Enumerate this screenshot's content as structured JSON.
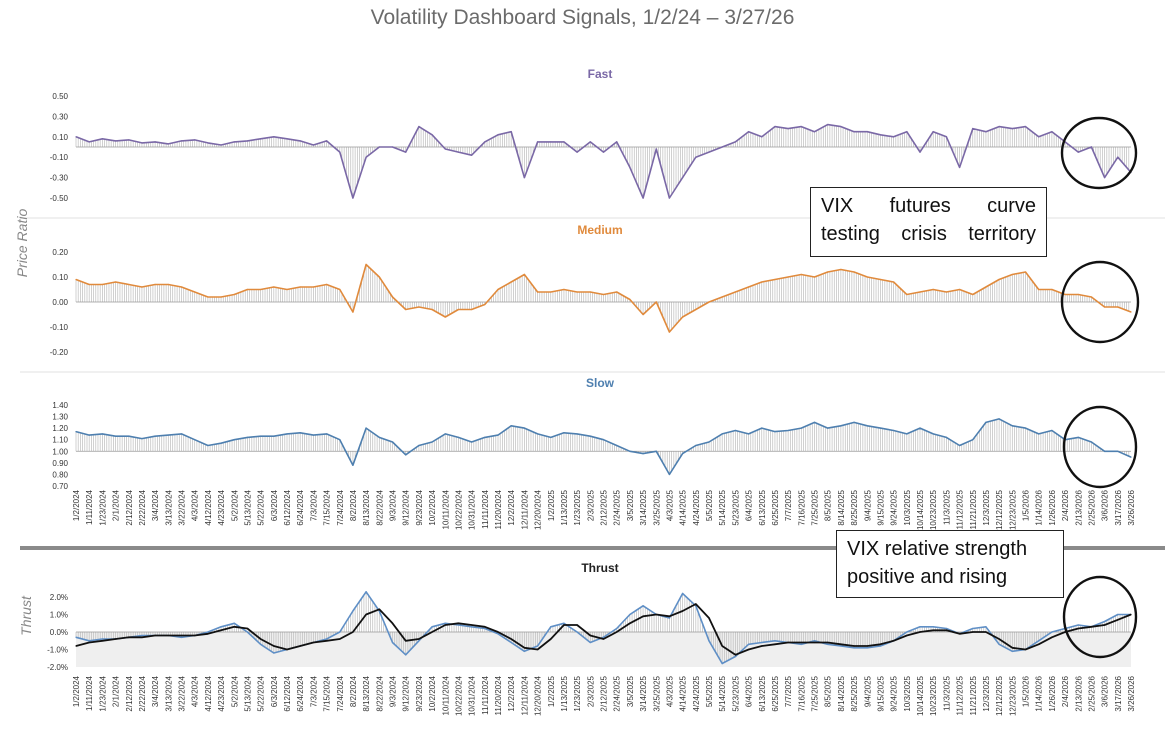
{
  "title": "Volatility Dashboard Signals, 1/2/24 – 3/27/26",
  "y_axis_label_top": "Price Ratio",
  "y_axis_label_bottom": "Thrust",
  "callouts": [
    "VIX futures curve testing crisis territory",
    "VIX relative strength positive and rising"
  ],
  "colors": {
    "fast": "#7a68a6",
    "medium": "#e08a3c",
    "slow": "#4e7faf",
    "thrust_blue": "#5f8fc6",
    "thrust_black": "#111111",
    "bars": "#bdbdbd",
    "divider": "#8a8a8a"
  },
  "date_labels": [
    "1/2/2024",
    "1/11/2024",
    "1/23/2024",
    "2/1/2024",
    "2/12/2024",
    "2/22/2024",
    "3/4/2024",
    "3/13/2024",
    "3/22/2024",
    "4/3/2024",
    "4/12/2024",
    "4/23/2024",
    "5/2/2024",
    "5/13/2024",
    "5/22/2024",
    "6/3/2024",
    "6/12/2024",
    "6/24/2024",
    "7/3/2024",
    "7/15/2024",
    "7/24/2024",
    "8/2/2024",
    "8/13/2024",
    "8/22/2024",
    "9/3/2024",
    "9/12/2024",
    "9/23/2024",
    "10/2/2024",
    "10/11/2024",
    "10/22/2024",
    "10/31/2024",
    "11/11/2024",
    "11/20/2024",
    "12/2/2024",
    "12/11/2024",
    "12/20/2024",
    "1/2/2025",
    "1/13/2025",
    "1/23/2025",
    "2/3/2025",
    "2/12/2025",
    "2/24/2025",
    "3/5/2025",
    "3/14/2025",
    "3/25/2025",
    "4/3/2025",
    "4/14/2025",
    "4/24/2025",
    "5/5/2025",
    "5/14/2025",
    "5/23/2025",
    "6/4/2025",
    "6/13/2025",
    "6/25/2025",
    "7/7/2025",
    "7/16/2025",
    "7/25/2025",
    "8/5/2025",
    "8/14/2025",
    "8/25/2025",
    "9/4/2025",
    "9/15/2025",
    "9/24/2025",
    "10/3/2025",
    "10/14/2025",
    "10/23/2025",
    "11/3/2025",
    "11/12/2025",
    "11/21/2025",
    "12/3/2025",
    "12/12/2025",
    "12/23/2025",
    "1/5/2026",
    "1/14/2026",
    "1/26/2026",
    "2/4/2026",
    "2/13/2026",
    "2/25/2026",
    "3/6/2026",
    "3/17/2026",
    "3/26/2026"
  ],
  "chart_data": [
    {
      "type": "line",
      "title": "Fast",
      "series": [
        {
          "values": [
            0.1,
            0.05,
            0.08,
            0.06,
            0.07,
            0.04,
            0.05,
            0.03,
            0.06,
            0.07,
            0.04,
            0.02,
            0.05,
            0.06,
            0.08,
            0.1,
            0.08,
            0.06,
            0.02,
            0.06,
            -0.05,
            -0.5,
            -0.1,
            0.0,
            0.0,
            -0.05,
            0.2,
            0.12,
            -0.02,
            -0.05,
            -0.08,
            0.05,
            0.12,
            0.15,
            -0.3,
            0.05,
            0.05,
            0.05,
            -0.05,
            0.05,
            -0.05,
            0.05,
            -0.2,
            -0.5,
            -0.02,
            -0.5,
            -0.3,
            -0.1,
            -0.05,
            0.0,
            0.05,
            0.15,
            0.1,
            0.2,
            0.18,
            0.2,
            0.15,
            0.22,
            0.2,
            0.15,
            0.15,
            0.12,
            0.1,
            0.15,
            -0.05,
            0.15,
            0.1,
            -0.2,
            0.18,
            0.15,
            0.2,
            0.18,
            0.2,
            0.1,
            0.15,
            0.05,
            -0.05,
            0.0,
            -0.3,
            -0.1,
            -0.25
          ]
        }
      ],
      "ylim": [
        -0.5,
        0.5
      ],
      "yticks": [
        "0.50",
        "0.30",
        "0.10",
        "-0.10",
        "-0.30",
        "-0.50"
      ]
    },
    {
      "type": "line",
      "title": "Medium",
      "series": [
        {
          "values": [
            0.09,
            0.07,
            0.07,
            0.08,
            0.07,
            0.06,
            0.07,
            0.07,
            0.06,
            0.04,
            0.02,
            0.02,
            0.03,
            0.05,
            0.05,
            0.06,
            0.05,
            0.06,
            0.06,
            0.07,
            0.05,
            -0.04,
            0.15,
            0.1,
            0.02,
            -0.03,
            -0.02,
            -0.03,
            -0.06,
            -0.03,
            -0.03,
            -0.01,
            0.05,
            0.08,
            0.11,
            0.04,
            0.04,
            0.05,
            0.04,
            0.04,
            0.03,
            0.04,
            0.01,
            -0.05,
            0.0,
            -0.12,
            -0.06,
            -0.03,
            0.0,
            0.02,
            0.04,
            0.06,
            0.08,
            0.09,
            0.1,
            0.11,
            0.1,
            0.12,
            0.13,
            0.12,
            0.1,
            0.09,
            0.08,
            0.03,
            0.04,
            0.05,
            0.04,
            0.05,
            0.03,
            0.06,
            0.09,
            0.11,
            0.12,
            0.05,
            0.05,
            0.03,
            0.03,
            0.02,
            -0.02,
            -0.02,
            -0.04
          ]
        }
      ],
      "ylim": [
        -0.2,
        0.2
      ],
      "yticks": [
        "0.20",
        "0.10",
        "0.00",
        "-0.10",
        "-0.20"
      ]
    },
    {
      "type": "line",
      "title": "Slow",
      "series": [
        {
          "values": [
            1.17,
            1.14,
            1.15,
            1.13,
            1.13,
            1.11,
            1.13,
            1.14,
            1.15,
            1.1,
            1.05,
            1.07,
            1.1,
            1.12,
            1.13,
            1.13,
            1.15,
            1.16,
            1.14,
            1.15,
            1.1,
            0.88,
            1.2,
            1.12,
            1.08,
            0.97,
            1.05,
            1.08,
            1.15,
            1.12,
            1.08,
            1.12,
            1.14,
            1.22,
            1.2,
            1.15,
            1.12,
            1.16,
            1.15,
            1.13,
            1.1,
            1.05,
            1.0,
            0.98,
            1.0,
            0.8,
            0.98,
            1.05,
            1.08,
            1.15,
            1.18,
            1.15,
            1.2,
            1.17,
            1.18,
            1.2,
            1.25,
            1.2,
            1.22,
            1.25,
            1.22,
            1.2,
            1.18,
            1.15,
            1.2,
            1.15,
            1.12,
            1.05,
            1.1,
            1.25,
            1.28,
            1.22,
            1.2,
            1.15,
            1.18,
            1.1,
            1.12,
            1.08,
            1.0,
            1.0,
            0.95
          ]
        }
      ],
      "ylim": [
        0.7,
        1.4
      ],
      "yticks": [
        "1.40",
        "1.30",
        "1.20",
        "1.10",
        "1.00",
        "0.90",
        "0.80",
        "0.70"
      ]
    },
    {
      "type": "line",
      "title": "Thrust",
      "series": [
        {
          "values": [
            -0.3,
            -0.5,
            -0.4,
            -0.4,
            -0.3,
            -0.2,
            -0.2,
            -0.2,
            -0.3,
            -0.2,
            0.0,
            0.3,
            0.5,
            0.0,
            -0.7,
            -1.2,
            -1.0,
            -0.8,
            -0.6,
            -0.4,
            0.0,
            1.2,
            2.3,
            1.2,
            -0.6,
            -1.3,
            -0.5,
            0.3,
            0.5,
            0.4,
            0.3,
            0.2,
            -0.1,
            -0.6,
            -1.1,
            -0.8,
            0.3,
            0.5,
            0.0,
            -0.6,
            -0.3,
            0.2,
            1.0,
            1.5,
            1.0,
            0.8,
            2.2,
            1.5,
            -0.5,
            -1.8,
            -1.4,
            -0.7,
            -0.6,
            -0.5,
            -0.6,
            -0.7,
            -0.5,
            -0.7,
            -0.8,
            -0.9,
            -0.9,
            -0.8,
            -0.5,
            0.0,
            0.3,
            0.3,
            0.2,
            -0.1,
            0.2,
            0.3,
            -0.7,
            -1.1,
            -1.0,
            -0.5,
            0.0,
            0.2,
            0.4,
            0.3,
            0.6,
            1.0,
            1.0
          ]
        },
        {
          "values": [
            -0.8,
            -0.6,
            -0.5,
            -0.4,
            -0.3,
            -0.3,
            -0.2,
            -0.2,
            -0.2,
            -0.2,
            -0.1,
            0.1,
            0.3,
            0.2,
            -0.4,
            -0.8,
            -1.0,
            -0.8,
            -0.6,
            -0.5,
            -0.4,
            0.0,
            1.0,
            1.3,
            0.5,
            -0.5,
            -0.4,
            0.0,
            0.4,
            0.5,
            0.4,
            0.3,
            0.0,
            -0.4,
            -0.9,
            -1.0,
            -0.4,
            0.4,
            0.4,
            -0.2,
            -0.4,
            0.0,
            0.5,
            0.9,
            1.0,
            0.9,
            1.2,
            1.6,
            0.8,
            -0.8,
            -1.3,
            -1.0,
            -0.8,
            -0.7,
            -0.6,
            -0.6,
            -0.6,
            -0.6,
            -0.7,
            -0.8,
            -0.8,
            -0.7,
            -0.5,
            -0.2,
            0.0,
            0.1,
            0.1,
            -0.1,
            0.0,
            0.0,
            -0.4,
            -0.9,
            -1.0,
            -0.7,
            -0.3,
            0.0,
            0.2,
            0.3,
            0.4,
            0.7,
            1.0
          ]
        }
      ],
      "ylim": [
        -2.0,
        2.0
      ],
      "yticks": [
        "2.0%",
        "1.0%",
        "0.0%",
        "-1.0%",
        "-2.0%"
      ]
    }
  ]
}
